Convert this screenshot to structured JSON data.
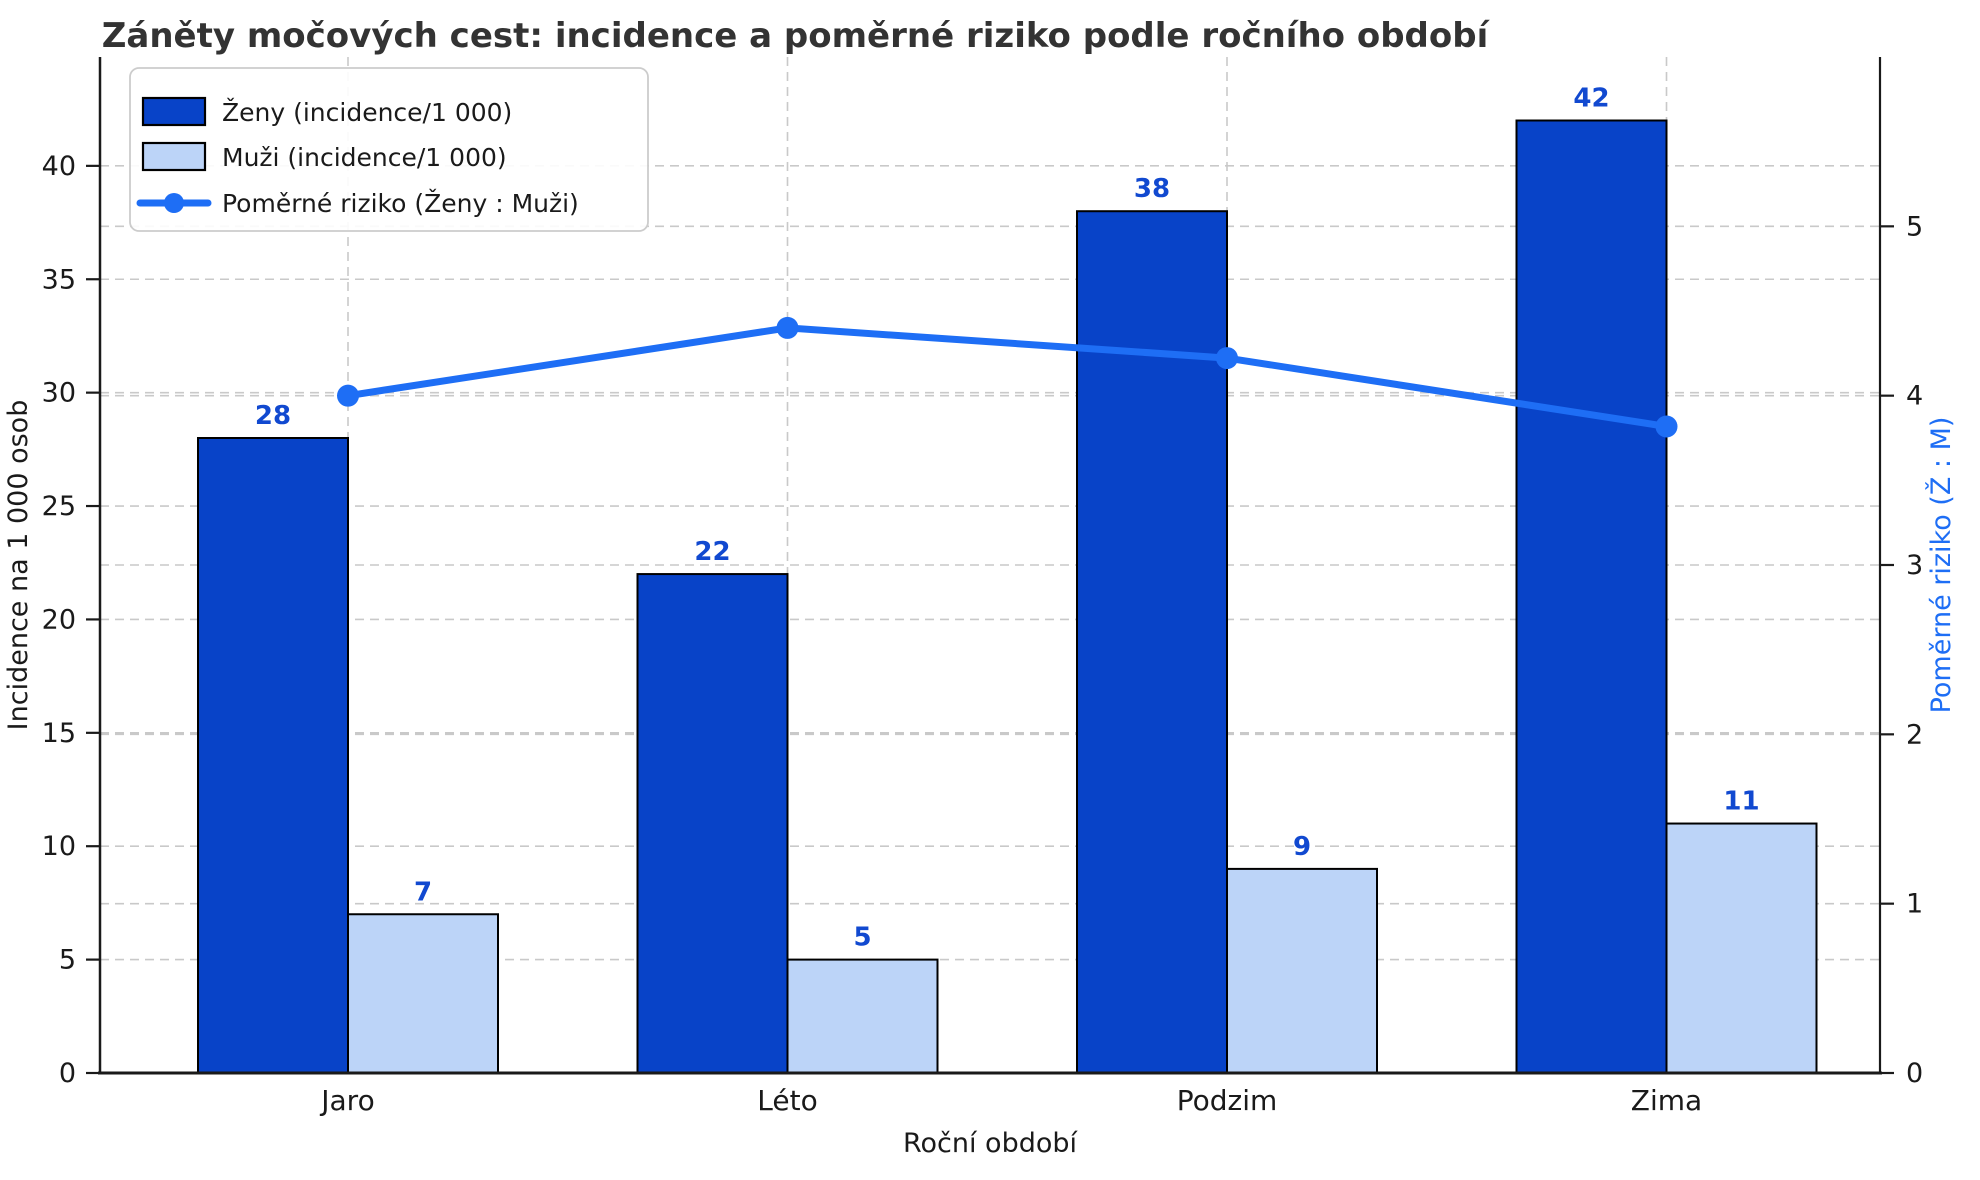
{
  "chart_data": {
    "type": "bar",
    "subtype": "grouped-bars-with-line-dual-axis",
    "title": "Záněty močových cest: incidence a poměrné riziko podle ročního období",
    "xlabel": "Roční období",
    "ylabel_left": "Incidence na 1 000 osob",
    "ylabel_right": "Poměrné riziko (Ž : M)",
    "categories": [
      "Jaro",
      "Léto",
      "Podzim",
      "Zima"
    ],
    "series": [
      {
        "name": "Ženy (incidence/1 000)",
        "kind": "bar",
        "axis": "left",
        "color": "#0843c8",
        "values": [
          28,
          22,
          38,
          42
        ]
      },
      {
        "name": "Muži (incidence/1 000)",
        "kind": "bar",
        "axis": "left",
        "color": "#bcd4f8",
        "values": [
          7,
          5,
          9,
          11
        ]
      },
      {
        "name": "Poměrné riziko (Ženy : Muži)",
        "kind": "line",
        "axis": "right",
        "color": "#1e6ef5",
        "values": [
          4.0,
          4.4,
          4.222,
          3.818
        ]
      }
    ],
    "left_axis": {
      "ticks": [
        0,
        5,
        10,
        15,
        20,
        25,
        30,
        35,
        40
      ],
      "range": [
        0,
        44.8
      ]
    },
    "right_axis": {
      "ticks": [
        0,
        1,
        2,
        3,
        4,
        5
      ],
      "range": [
        0,
        6
      ]
    },
    "grid": "dashed-both-axes-and-vertical",
    "legend_position": "upper-left",
    "colors": {
      "bar_women": "#0843c8",
      "bar_men": "#bcd4f8",
      "line_risk": "#1e6ef5",
      "bar_edge": "#000000",
      "value_label": "#1149d0",
      "right_axis_label": "#1e6ef5",
      "grid": "#c9c9c9",
      "spine": "#1a1a1a",
      "title": "#333333"
    }
  }
}
